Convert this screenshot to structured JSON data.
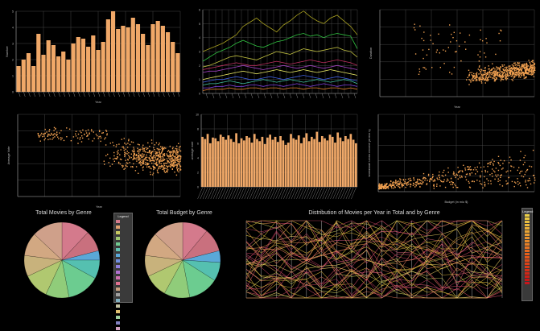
{
  "dashboard": {
    "titles": {
      "genre_count_pie": "Total Movies by Genre",
      "genre_budget_pie": "Total Budget by Genre",
      "parallel": "Distribution of Movies per Year in Total and by Genre"
    },
    "legend_title": "Legend"
  },
  "colors": {
    "bar": "#f0a868",
    "point": "#f0a050",
    "grid": "#555555",
    "axis": "#999999"
  },
  "chart_data": [
    {
      "id": "bar-by-year",
      "type": "bar",
      "xlabel": "Year",
      "ylabel": "Number",
      "ylim": [
        0,
        5
      ],
      "grid": true,
      "values": [
        1.6,
        2.0,
        2.4,
        1.6,
        3.6,
        2.3,
        3.2,
        2.9,
        2.2,
        2.5,
        2.0,
        3.0,
        3.4,
        3.3,
        2.8,
        3.5,
        2.6,
        3.1,
        4.5,
        5.0,
        3.9,
        4.1,
        4.0,
        4.6,
        4.2,
        3.6,
        2.9,
        4.2,
        4.4,
        4.1,
        3.7,
        3.1,
        2.4
      ]
    },
    {
      "id": "lines-by-genre",
      "type": "line",
      "ylim": [
        0,
        6
      ],
      "grid": true,
      "series": [
        {
          "color": "#a8a020",
          "values": [
            3.0,
            3.2,
            3.4,
            3.6,
            3.9,
            4.2,
            4.8,
            5.1,
            5.4,
            5.0,
            4.7,
            4.4,
            4.9,
            5.2,
            5.6,
            5.9,
            5.5,
            5.2,
            5.0,
            5.4,
            5.6,
            5.2,
            4.8,
            4.2
          ]
        },
        {
          "color": "#30c040",
          "values": [
            2.3,
            2.6,
            2.9,
            3.1,
            3.3,
            3.6,
            3.8,
            3.6,
            3.4,
            3.3,
            3.5,
            3.7,
            3.8,
            4.0,
            4.2,
            4.3,
            4.1,
            4.2,
            4.0,
            4.2,
            4.3,
            4.2,
            4.1,
            3.2
          ]
        },
        {
          "color": "#c0c040",
          "values": [
            1.9,
            2.0,
            2.2,
            2.4,
            2.6,
            2.7,
            2.6,
            2.5,
            2.4,
            2.6,
            2.8,
            3.0,
            2.9,
            2.8,
            3.0,
            3.2,
            3.1,
            3.0,
            3.1,
            3.2,
            3.3,
            3.1,
            3.0,
            2.6
          ]
        },
        {
          "color": "#c03060",
          "values": [
            1.7,
            1.8,
            1.9,
            2.0,
            2.1,
            2.2,
            2.1,
            2.0,
            2.0,
            2.1,
            2.2,
            2.3,
            2.2,
            2.1,
            2.2,
            2.3,
            2.4,
            2.3,
            2.2,
            2.3,
            2.4,
            2.3,
            2.2,
            2.0
          ]
        },
        {
          "color": "#a040c0",
          "values": [
            1.5,
            1.6,
            1.6,
            1.7,
            1.8,
            1.9,
            2.0,
            1.9,
            1.8,
            1.7,
            1.8,
            1.9,
            2.0,
            1.9,
            1.8,
            1.9,
            2.0,
            1.9,
            1.8,
            1.9,
            2.0,
            1.9,
            1.8,
            1.7
          ]
        },
        {
          "color": "#e0e060",
          "values": [
            1.0,
            1.1,
            1.2,
            1.3,
            1.4,
            1.5,
            1.6,
            1.5,
            1.4,
            1.5,
            1.6,
            1.7,
            1.6,
            1.5,
            1.6,
            1.7,
            1.6,
            1.5,
            1.6,
            1.7,
            1.6,
            1.5,
            1.4,
            1.3
          ]
        },
        {
          "color": "#4060e0",
          "values": [
            0.8,
            0.9,
            1.0,
            1.0,
            1.1,
            1.2,
            1.1,
            1.0,
            1.0,
            1.1,
            1.2,
            1.1,
            1.0,
            1.1,
            1.2,
            1.3,
            1.2,
            1.1,
            1.0,
            1.1,
            1.2,
            1.1,
            1.0,
            0.9
          ]
        },
        {
          "color": "#40c0a0",
          "values": [
            0.6,
            0.7,
            0.7,
            0.8,
            0.9,
            0.8,
            0.7,
            0.8,
            0.9,
            1.0,
            0.9,
            0.8,
            0.9,
            1.0,
            0.9,
            0.8,
            0.9,
            1.0,
            0.9,
            0.8,
            0.9,
            1.0,
            0.9,
            0.7
          ]
        },
        {
          "color": "#8040e0",
          "values": [
            0.4,
            0.4,
            0.5,
            0.5,
            0.6,
            0.5,
            0.5,
            0.6,
            0.6,
            0.5,
            0.6,
            0.6,
            0.5,
            0.6,
            0.7,
            0.6,
            0.5,
            0.6,
            0.7,
            0.6,
            0.5,
            0.6,
            0.6,
            0.5
          ]
        },
        {
          "color": "#e08030",
          "values": [
            0.2,
            0.3,
            0.3,
            0.3,
            0.4,
            0.3,
            0.3,
            0.4,
            0.4,
            0.3,
            0.4,
            0.4,
            0.3,
            0.4,
            0.4,
            0.3,
            0.4,
            0.4,
            0.3,
            0.4,
            0.4,
            0.3,
            0.4,
            0.3
          ]
        }
      ]
    },
    {
      "id": "scatter-1",
      "type": "scatter",
      "xlabel": "Year",
      "ylabel": "Duration",
      "grid": true,
      "point_count": 650
    },
    {
      "id": "scatter-2",
      "type": "scatter",
      "xlabel": "Year",
      "ylabel": "Average Vote",
      "grid": true,
      "point_count": 650
    },
    {
      "id": "bar-by-country",
      "type": "bar",
      "ylabel": "Average Vote",
      "ylim": [
        0,
        10
      ],
      "grid": true,
      "values": [
        6.9,
        6.6,
        7.3,
        6.0,
        6.8,
        6.7,
        6.3,
        7.2,
        6.9,
        6.5,
        7.1,
        6.6,
        6.2,
        7.4,
        6.0,
        6.7,
        6.4,
        7.0,
        6.8,
        6.1,
        7.3,
        6.6,
        6.3,
        6.9,
        5.9,
        6.8,
        7.2,
        6.5,
        6.9,
        6.2,
        7.0,
        6.4,
        5.8,
        6.1,
        7.3,
        6.7,
        6.5,
        7.1,
        6.0,
        6.8,
        7.4,
        6.3,
        6.9,
        6.6,
        7.6,
        6.2,
        7.0,
        6.7,
        6.4,
        7.2,
        6.9,
        6.1,
        7.5,
        6.8,
        6.3,
        7.0,
        6.6,
        7.3,
        6.5,
        6.0
      ]
    },
    {
      "id": "scatter-3",
      "type": "scatter",
      "xlabel": "Budget (in mio $)",
      "ylabel": "Worldwide Gross Income (in mio $)",
      "grid": true,
      "point_count": 450
    },
    {
      "id": "pie-count",
      "type": "pie",
      "title": "Total Movies by Genre",
      "slices": [
        {
          "color": "#d47a8c",
          "value": 12
        },
        {
          "color": "#c9707e",
          "value": 9
        },
        {
          "color": "#5aa8d8",
          "value": 4
        },
        {
          "color": "#55c0b0",
          "value": 8
        },
        {
          "color": "#6ccc90",
          "value": 14
        },
        {
          "color": "#90cc7a",
          "value": 10
        },
        {
          "color": "#b0c870",
          "value": 11
        },
        {
          "color": "#c8b27c",
          "value": 9
        },
        {
          "color": "#d2a882",
          "value": 10
        },
        {
          "color": "#cfa08a",
          "value": 13
        }
      ]
    },
    {
      "id": "pie-budget",
      "type": "pie",
      "title": "Total Budget by Genre",
      "slices": [
        {
          "color": "#d47a8c",
          "value": 11
        },
        {
          "color": "#c9707e",
          "value": 10
        },
        {
          "color": "#5aa8d8",
          "value": 5
        },
        {
          "color": "#55c0b0",
          "value": 8
        },
        {
          "color": "#6ccc90",
          "value": 13
        },
        {
          "color": "#90cc7a",
          "value": 11
        },
        {
          "color": "#b0c870",
          "value": 10
        },
        {
          "color": "#c8b27c",
          "value": 9
        },
        {
          "color": "#d2a882",
          "value": 10
        },
        {
          "color": "#cfa08a",
          "value": 13
        }
      ]
    },
    {
      "id": "parallel",
      "type": "line",
      "title": "Distribution of Movies per Year in Total and by Genre",
      "axis_count": 18,
      "line_count": 42
    }
  ]
}
